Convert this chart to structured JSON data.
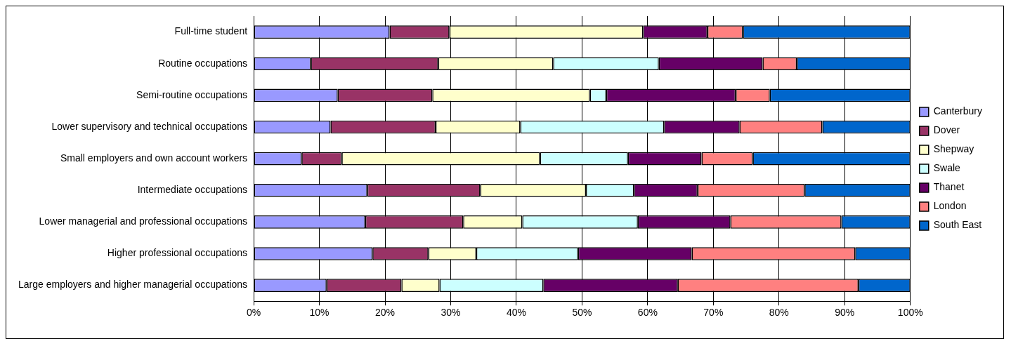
{
  "chart_data": {
    "type": "bar",
    "orientation": "horizontal",
    "stacked": true,
    "categories": [
      "Full-time student",
      "Routine occupations",
      "Semi-routine occupations",
      "Lower supervisory and technical occupations",
      "Small employers and own account workers",
      "Intermediate occupations",
      "Lower managerial and professional occupations",
      "Higher professional occupations",
      "Large employers and higher managerial occupations"
    ],
    "series": [
      {
        "name": "Canterbury",
        "color": "#9999ff",
        "values": [
          20.7,
          8.7,
          12.8,
          11.7,
          7.3,
          17.3,
          17.0,
          18.1,
          11.1
        ]
      },
      {
        "name": "Dover",
        "color": "#993366",
        "values": [
          9.1,
          19.4,
          14.4,
          16.0,
          6.1,
          17.2,
          14.9,
          8.5,
          11.4
        ]
      },
      {
        "name": "Shepway",
        "color": "#ffffcc",
        "values": [
          29.5,
          17.5,
          24.0,
          12.9,
          30.2,
          16.1,
          9.0,
          7.3,
          5.8
        ]
      },
      {
        "name": "Swale",
        "color": "#ccffff",
        "values": [
          0,
          16.1,
          2.5,
          21.9,
          13.4,
          7.3,
          17.6,
          15.5,
          15.8
        ]
      },
      {
        "name": "Thanet",
        "color": "#660066",
        "values": [
          9.8,
          15.8,
          19.7,
          11.5,
          11.2,
          9.7,
          14.1,
          17.3,
          20.5
        ]
      },
      {
        "name": "London",
        "color": "#ff8080",
        "values": [
          5.4,
          5.2,
          5.2,
          12.6,
          7.8,
          16.3,
          16.9,
          24.9,
          27.5
        ]
      },
      {
        "name": "South East",
        "color": "#0066cc",
        "values": [
          25.5,
          17.3,
          21.4,
          13.4,
          24.0,
          16.1,
          10.5,
          8.4,
          7.9
        ]
      }
    ],
    "xlim": [
      0,
      100
    ],
    "xticks": [
      {
        "value": 0,
        "label": "0%"
      },
      {
        "value": 10,
        "label": "10%"
      },
      {
        "value": 20,
        "label": "20%"
      },
      {
        "value": 30,
        "label": "30%"
      },
      {
        "value": 40,
        "label": "40%"
      },
      {
        "value": 50,
        "label": "50%"
      },
      {
        "value": 60,
        "label": "60%"
      },
      {
        "value": 70,
        "label": "70%"
      },
      {
        "value": 80,
        "label": "80%"
      },
      {
        "value": 90,
        "label": "90%"
      },
      {
        "value": 100,
        "label": "100%"
      }
    ],
    "grid": "x",
    "legend": "right"
  }
}
